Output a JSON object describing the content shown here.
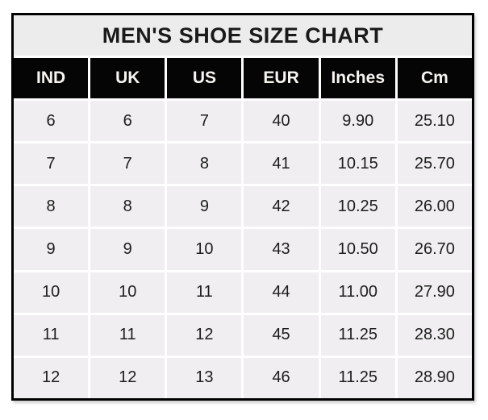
{
  "title": "MEN'S SHOE SIZE CHART",
  "colors": {
    "page_background": "#ffffff",
    "table_border": "#000000",
    "title_background": "#edecec",
    "header_background": "#050505",
    "header_text": "#f7f5f2",
    "cell_background": "#f0eef0",
    "cell_text": "#1d1d1d",
    "gridline": "#ffffff"
  },
  "chart_data": {
    "type": "table",
    "title": "MEN'S SHOE SIZE CHART",
    "columns": [
      "IND",
      "UK",
      "US",
      "EUR",
      "Inches",
      "Cm"
    ],
    "rows": [
      [
        "6",
        "6",
        "7",
        "40",
        "9.90",
        "25.10"
      ],
      [
        "7",
        "7",
        "8",
        "41",
        "10.15",
        "25.70"
      ],
      [
        "8",
        "8",
        "9",
        "42",
        "10.25",
        "26.00"
      ],
      [
        "9",
        "9",
        "10",
        "43",
        "10.50",
        "26.70"
      ],
      [
        "10",
        "10",
        "11",
        "44",
        "11.00",
        "27.90"
      ],
      [
        "11",
        "11",
        "12",
        "45",
        "11.25",
        "28.30"
      ],
      [
        "12",
        "12",
        "13",
        "46",
        "11.25",
        "28.90"
      ]
    ]
  }
}
